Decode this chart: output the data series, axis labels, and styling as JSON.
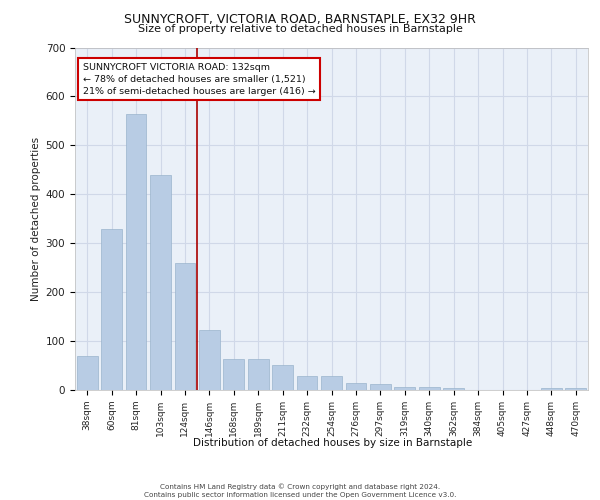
{
  "title": "SUNNYCROFT, VICTORIA ROAD, BARNSTAPLE, EX32 9HR",
  "subtitle": "Size of property relative to detached houses in Barnstaple",
  "xlabel": "Distribution of detached houses by size in Barnstaple",
  "ylabel": "Number of detached properties",
  "categories": [
    "38sqm",
    "60sqm",
    "81sqm",
    "103sqm",
    "124sqm",
    "146sqm",
    "168sqm",
    "189sqm",
    "211sqm",
    "232sqm",
    "254sqm",
    "276sqm",
    "297sqm",
    "319sqm",
    "340sqm",
    "362sqm",
    "384sqm",
    "405sqm",
    "427sqm",
    "448sqm",
    "470sqm"
  ],
  "values": [
    70,
    330,
    565,
    440,
    260,
    123,
    63,
    63,
    52,
    28,
    28,
    15,
    13,
    7,
    6,
    5,
    0,
    0,
    0,
    5,
    5
  ],
  "bar_color": "#b8cce4",
  "bar_edgecolor": "#9ab4cc",
  "grid_color": "#d0d8e8",
  "background_color": "#eaf0f8",
  "red_line_x": 4.5,
  "annotation_text": "SUNNYCROFT VICTORIA ROAD: 132sqm\n← 78% of detached houses are smaller (1,521)\n21% of semi-detached houses are larger (416) →",
  "annotation_box_color": "#ffffff",
  "annotation_border_color": "#cc0000",
  "footer_text": "Contains HM Land Registry data © Crown copyright and database right 2024.\nContains public sector information licensed under the Open Government Licence v3.0.",
  "ylim": [
    0,
    700
  ],
  "yticks": [
    0,
    100,
    200,
    300,
    400,
    500,
    600,
    700
  ]
}
